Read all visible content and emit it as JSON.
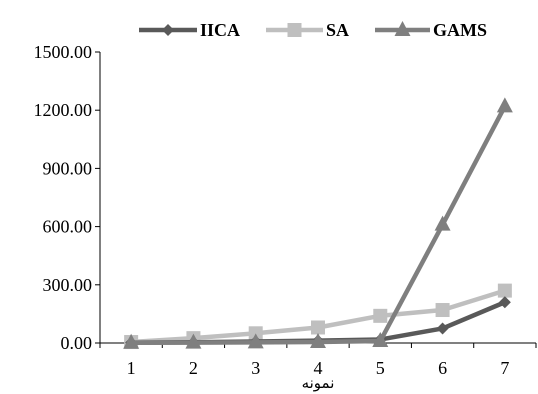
{
  "chart_data": {
    "type": "line",
    "title": "",
    "xlabel": "نمونه",
    "ylabel": "",
    "categories": [
      "1",
      "2",
      "3",
      "4",
      "5",
      "6",
      "7"
    ],
    "y_ticks": [
      "0.00",
      "300.00",
      "600.00",
      "900.00",
      "1200.00",
      "1500.00"
    ],
    "ylim": [
      0,
      1500
    ],
    "grid": false,
    "legend_position": "top",
    "series": [
      {
        "name": "IICA",
        "color": "#595959",
        "marker": "diamond",
        "values": [
          2,
          4,
          8,
          12,
          18,
          75,
          210
        ]
      },
      {
        "name": "SA",
        "color": "#bfbfbf",
        "marker": "square",
        "values": [
          5,
          25,
          50,
          80,
          140,
          170,
          270
        ]
      },
      {
        "name": "GAMS",
        "color": "#7f7f7f",
        "marker": "triangle",
        "values": [
          1,
          2,
          3,
          5,
          10,
          610,
          1220
        ]
      }
    ]
  }
}
